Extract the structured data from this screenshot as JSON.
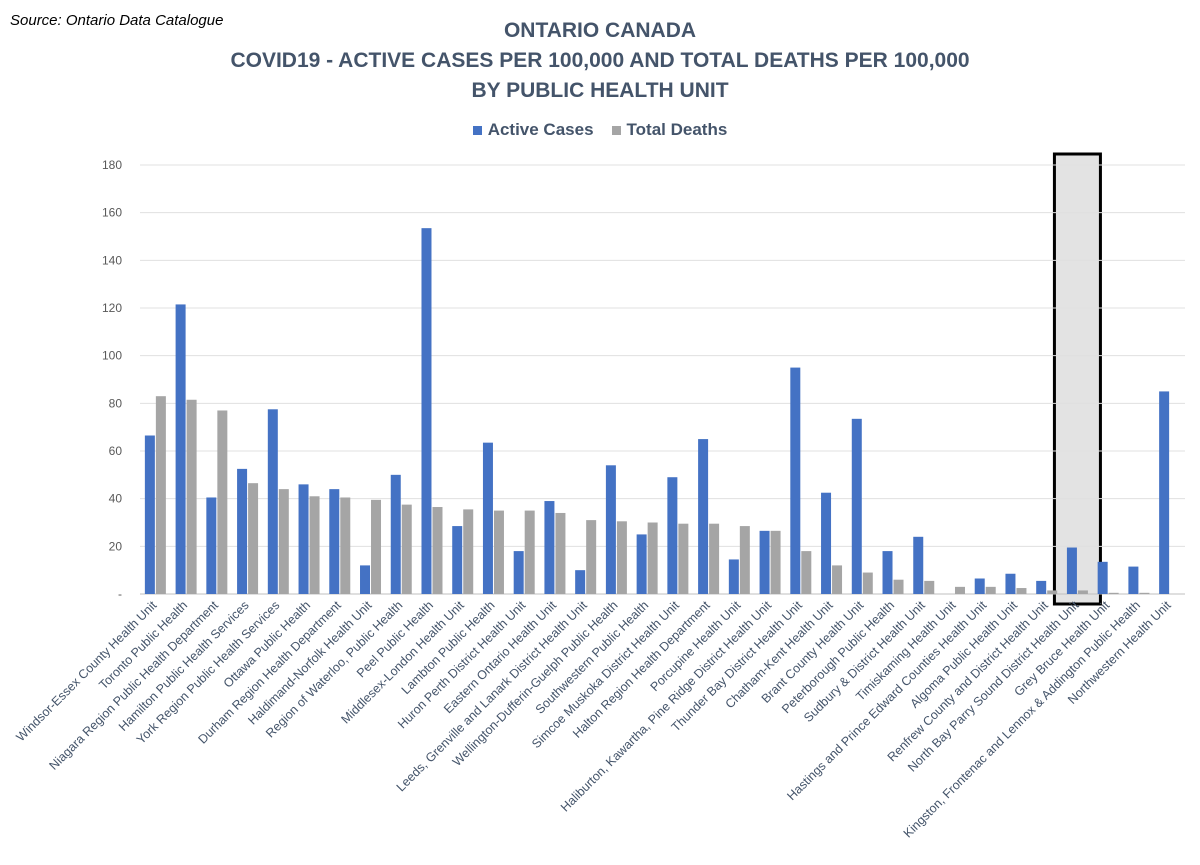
{
  "source": "Source: Ontario Data Catalogue",
  "titles": [
    "ONTARIO CANADA",
    "COVID19 - ACTIVE CASES PER 100,000 AND TOTAL DEATHS PER 100,000",
    "BY PUBLIC HEALTH UNIT"
  ],
  "colors": {
    "active": "#4472c4",
    "deaths": "#a5a5a5",
    "highlight_fill": "#e3e3e3",
    "highlight_stroke": "#000000"
  },
  "chart_data": {
    "type": "bar",
    "ylim": [
      0,
      180
    ],
    "yticks": [
      0,
      20,
      40,
      60,
      80,
      100,
      120,
      140,
      160,
      180
    ],
    "ytick_labels": [
      "-",
      "20",
      "40",
      "60",
      "80",
      "100",
      "120",
      "140",
      "160",
      "180"
    ],
    "legend_position": "top-center",
    "highlighted_category": "North Bay Parry Sound District Health Unit",
    "categories": [
      "Windsor-Essex County Health Unit",
      "Toronto Public Health",
      "Niagara Region Public Health Department",
      "Hamilton Public Health Services",
      "York Region Public Health Services",
      "Ottawa Public Health",
      "Durham Region Health Department",
      "Haldimand-Norfolk Health Unit",
      "Region of Waterloo, Public Health",
      "Peel Public Health",
      "Middlesex-London Health Unit",
      "Lambton Public Health",
      "Huron Perth District Health Unit",
      "Eastern Ontario Health Unit",
      "Leeds, Grenville and Lanark District Health Unit",
      "Wellington-Dufferin-Guelph Public Health",
      "Southwestern Public Health",
      "Simcoe Muskoka District Health Unit",
      "Halton Region Health Department",
      "Porcupine Health Unit",
      "Haliburton, Kawartha, Pine Ridge District Health Unit",
      "Thunder Bay District Health Unit",
      "Chatham-Kent Health Unit",
      "Brant County Health Unit",
      "Peterborough Public Health",
      "Sudbury & District Health Unit",
      "Timiskaming Health Unit",
      "Hastings and Prince Edward Counties Health Unit",
      "Algoma Public Health Unit",
      "Renfrew County and District Health Unit",
      "North Bay Parry Sound District Health Unit",
      "Grey Bruce Health Unit",
      "Kingston, Frontenac and Lennox & Addington Public Health",
      "Northwestern Health Unit"
    ],
    "series": [
      {
        "name": "Active Cases",
        "values": [
          66.5,
          121.5,
          40.5,
          52.5,
          77.5,
          46,
          44,
          12,
          50,
          153.5,
          28.5,
          63.5,
          18,
          39,
          10,
          54,
          25,
          49,
          65,
          14.5,
          26.5,
          95,
          42.5,
          73.5,
          18,
          24,
          0,
          6.5,
          8.5,
          5.5,
          19.5,
          13.5,
          11.5,
          85
        ]
      },
      {
        "name": "Total Deaths",
        "values": [
          83,
          81.5,
          77,
          46.5,
          44,
          41,
          40.5,
          39.5,
          37.5,
          36.5,
          35.5,
          35,
          35,
          34,
          31,
          30.5,
          30,
          29.5,
          29.5,
          28.5,
          26.5,
          18,
          12,
          9,
          6,
          5.5,
          3,
          3,
          2.5,
          1.5,
          1.5,
          0.5,
          0.5,
          0
        ]
      }
    ]
  }
}
